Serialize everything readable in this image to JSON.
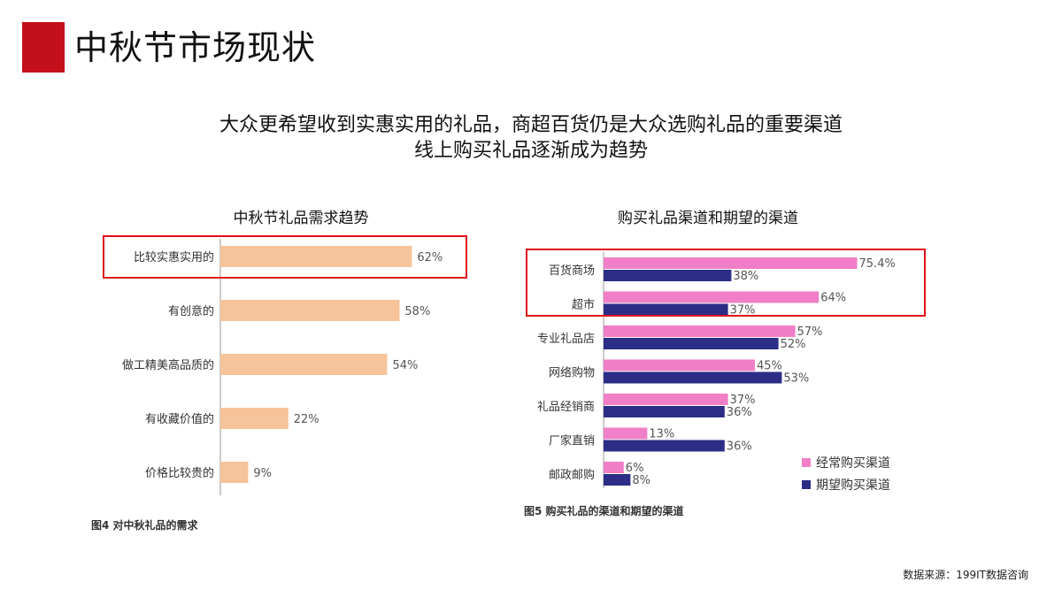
{
  "header": {
    "title": "中秋节市场现状",
    "subtitle_line1": "大众更希望收到实惠实用的礼品，商超百货仍是大众选购礼品的重要渠道",
    "subtitle_line2": "线上购买礼品逐渐成为趋势"
  },
  "colors": {
    "accent": "#c4101b",
    "highlight_border": "#e01019",
    "bar_orange": "#f7c39a",
    "bar_pink": "#f07fc7",
    "bar_navy": "#2b2d86"
  },
  "chart_data": [
    {
      "type": "bar",
      "orientation": "horizontal",
      "title": "中秋节礼品需求趋势",
      "caption": "图4   对中秋礼品的需求",
      "categories": [
        "比较实惠实用的",
        "有创意的",
        "做工精美高品质的",
        "有收藏价值的",
        "价格比较贵的"
      ],
      "values": [
        62,
        58,
        54,
        22,
        9
      ],
      "value_labels": [
        "62%",
        "58%",
        "54%",
        "22%",
        "9%"
      ],
      "xlim": [
        0,
        100
      ],
      "grid": false
    },
    {
      "type": "bar",
      "orientation": "horizontal",
      "title": "购买礼品渠道和期望的渠道",
      "caption": "图5   购买礼品的渠道和期望的渠道",
      "categories": [
        "百货商场",
        "超市",
        "专业礼品店",
        "网络购物",
        "礼品经销商",
        "厂家直销",
        "邮政邮购"
      ],
      "series": [
        {
          "name": "经常购买渠道",
          "values": [
            75.4,
            64,
            57,
            45,
            37,
            13,
            6
          ],
          "value_labels": [
            "75.4%",
            "64%",
            "57%",
            "45%",
            "37%",
            "13%",
            "6%"
          ]
        },
        {
          "name": "期望购买渠道",
          "values": [
            38,
            37,
            52,
            53,
            36,
            36,
            8
          ],
          "value_labels": [
            "38%",
            "37%",
            "52%",
            "53%",
            "36%",
            "36%",
            "8%"
          ]
        }
      ],
      "xlim": [
        0,
        100
      ],
      "legend_position": "bottom-right",
      "grid": false
    }
  ],
  "footer": {
    "source": "数据来源：199IT数据咨询"
  }
}
